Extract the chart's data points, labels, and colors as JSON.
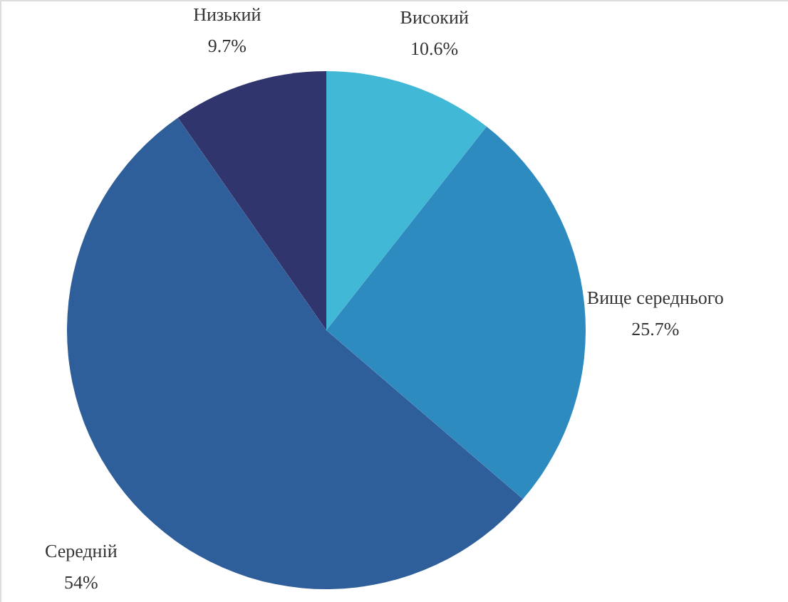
{
  "chart_data": {
    "type": "pie",
    "categories": [
      "Високий",
      "Вище середнього",
      "Середній",
      "Низький"
    ],
    "values": [
      10.6,
      25.7,
      54,
      9.7
    ],
    "value_labels": [
      "10.6%",
      "25.7%",
      "54%",
      "9.7%"
    ],
    "colors": [
      "#41b8d5",
      "#2e8bc0",
      "#2e5f9a",
      "#31356e"
    ]
  }
}
